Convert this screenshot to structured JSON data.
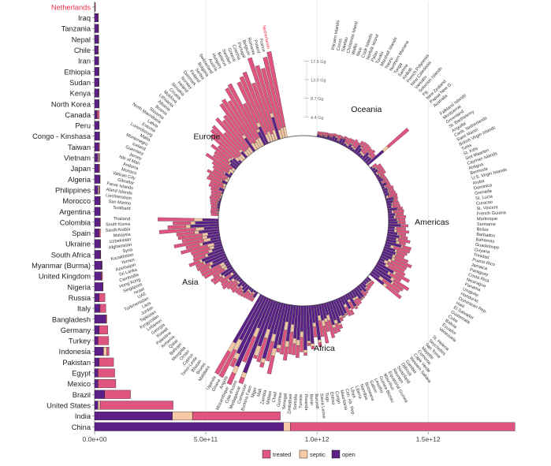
{
  "colors": {
    "treated": "#e0557f",
    "septic": "#f6c9a6",
    "open": "#5b1f87",
    "highlight": "#e8304a",
    "axis": "#666666",
    "grid": "#d9d9d9"
  },
  "legend": {
    "items": [
      {
        "key": "treated",
        "label": "treated"
      },
      {
        "key": "septic",
        "label": "septic"
      },
      {
        "key": "open",
        "label": "open"
      }
    ]
  },
  "chart_data": [
    {
      "type": "bar",
      "orientation": "horizontal",
      "stacked": true,
      "highlighted_category": "Netherlands",
      "series_order": [
        "open",
        "septic",
        "treated"
      ],
      "xlim": [
        0,
        1900000000000.0
      ],
      "x_ticks": [
        0,
        500000000000.0,
        1000000000000.0,
        1500000000000.0
      ],
      "x_tick_labels": [
        "0.0e+00",
        "5.0e+11",
        "1.0e+12",
        "1.5e+12"
      ],
      "grid": true,
      "rows": [
        {
          "label": "Netherlands",
          "open": 1000000000.0,
          "septic": 200000000.0,
          "treated": 2500000000.0
        },
        {
          "label": "Iraq",
          "open": 15000000000.0,
          "septic": 500000000.0,
          "treated": 1000000000.0
        },
        {
          "label": "Tanzania",
          "open": 16000000000.0,
          "septic": 500000000.0,
          "treated": 300000000.0
        },
        {
          "label": "Nepal",
          "open": 17000000000.0,
          "septic": 300000000.0,
          "treated": 200000000.0
        },
        {
          "label": "Chile",
          "open": 15000000000.0,
          "septic": 500000000.0,
          "treated": 2000000000.0
        },
        {
          "label": "Iran",
          "open": 17000000000.0,
          "septic": 500000000.0,
          "treated": 500000000.0
        },
        {
          "label": "Ethiopia",
          "open": 18000000000.0,
          "septic": 500000000.0,
          "treated": 300000000.0
        },
        {
          "label": "Sudan",
          "open": 18000000000.0,
          "septic": 500000000.0,
          "treated": 300000000.0
        },
        {
          "label": "Kenya",
          "open": 18000000000.0,
          "septic": 500000000.0,
          "treated": 500000000.0
        },
        {
          "label": "North Korea",
          "open": 19000000000.0,
          "septic": 500000000.0,
          "treated": 300000000.0
        },
        {
          "label": "Canada",
          "open": 10000000000.0,
          "septic": 1000000000.0,
          "treated": 10000000000.0
        },
        {
          "label": "Peru",
          "open": 19000000000.0,
          "septic": 500000000.0,
          "treated": 1500000000.0
        },
        {
          "label": "Congo - Kinshasa",
          "open": 21000000000.0,
          "septic": 500000000.0,
          "treated": 500000000.0
        },
        {
          "label": "Taiwan",
          "open": 18000000000.0,
          "septic": 500000000.0,
          "treated": 4000000000.0
        },
        {
          "label": "Vietnam",
          "open": 15000000000.0,
          "septic": 5000000000.0,
          "treated": 3000000000.0
        },
        {
          "label": "Japan",
          "open": 18000000000.0,
          "septic": 1000000000.0,
          "treated": 4000000000.0
        },
        {
          "label": "Algeria",
          "open": 23000000000.0,
          "septic": 500000000.0,
          "treated": 1000000000.0
        },
        {
          "label": "Philippines",
          "open": 15000000000.0,
          "septic": 6000000000.0,
          "treated": 3000000000.0
        },
        {
          "label": "Morocco",
          "open": 23000000000.0,
          "septic": 500000000.0,
          "treated": 2000000000.0
        },
        {
          "label": "Argentina",
          "open": 24000000000.0,
          "septic": 500000000.0,
          "treated": 1000000000.0
        },
        {
          "label": "Colombia",
          "open": 24000000000.0,
          "septic": 500000000.0,
          "treated": 2000000000.0
        },
        {
          "label": "Spain",
          "open": 20000000000.0,
          "septic": 500000000.0,
          "treated": 6000000000.0
        },
        {
          "label": "Ukraine",
          "open": 25000000000.0,
          "septic": 500000000.0,
          "treated": 1500000000.0
        },
        {
          "label": "South Africa",
          "open": 26000000000.0,
          "septic": 500000000.0,
          "treated": 1500000000.0
        },
        {
          "label": "Myanmar (Burma)",
          "open": 32000000000.0,
          "septic": 500000000.0,
          "treated": 500000000.0
        },
        {
          "label": "United Kingdom",
          "open": 30000000000.0,
          "septic": 500000000.0,
          "treated": 5000000000.0
        },
        {
          "label": "Nigeria",
          "open": 36000000000.0,
          "septic": 500000000.0,
          "treated": 2000000000.0
        },
        {
          "label": "Russia",
          "open": 20000000000.0,
          "septic": 500000000.0,
          "treated": 26000000000.0
        },
        {
          "label": "Italy",
          "open": 24000000000.0,
          "septic": 500000000.0,
          "treated": 26000000000.0
        },
        {
          "label": "Bangladesh",
          "open": 50000000000.0,
          "septic": 1000000000.0,
          "treated": 4000000000.0
        },
        {
          "label": "Germany",
          "open": 20000000000.0,
          "septic": 500000000.0,
          "treated": 39000000000.0
        },
        {
          "label": "Turkey",
          "open": 15000000000.0,
          "septic": 500000000.0,
          "treated": 48000000000.0
        },
        {
          "label": "Indonesia",
          "open": 40000000000.0,
          "septic": 15000000000.0,
          "treated": 10000000000.0
        },
        {
          "label": "Pakistan",
          "open": 20000000000.0,
          "septic": 500000000.0,
          "treated": 65000000000.0
        },
        {
          "label": "Egypt",
          "open": 15000000000.0,
          "septic": 500000000.0,
          "treated": 75000000000.0
        },
        {
          "label": "Mexico",
          "open": 15000000000.0,
          "septic": 500000000.0,
          "treated": 80000000000.0
        },
        {
          "label": "Brazil",
          "open": 45000000000.0,
          "septic": 500000000.0,
          "treated": 116000000000.0
        },
        {
          "label": "United States",
          "open": 15000000000.0,
          "septic": 10000000000.0,
          "treated": 328000000000.0
        },
        {
          "label": "India",
          "open": 350000000000.0,
          "septic": 90000000000.0,
          "treated": 395000000000.0
        },
        {
          "label": "China",
          "open": 850000000000.0,
          "septic": 30000000000.0,
          "treated": 1010000000000.0
        }
      ]
    },
    {
      "type": "bar",
      "coordinate_system": "polar",
      "stacked": true,
      "series_order": [
        "open",
        "septic",
        "treated"
      ],
      "radial_ticks": [
        4.4,
        8.7,
        13.0,
        17.5
      ],
      "radial_tick_labels": [
        "4.4 Gg",
        "8.7 Gg",
        "13.0 Gg",
        "17.5 Gg"
      ],
      "highlighted_category": "Netherlands",
      "regions": [
        {
          "name": "Oceania",
          "countries": [
            "Pitcairn Islands",
            "Cocos",
            "Tokelau",
            "Christmas Island",
            "Wallis",
            "Niue",
            "Cook Islands",
            "Norfolk Island",
            "Palau",
            "Tuvalu",
            "Marshall Islands",
            "Nauru",
            "Northern Mariana",
            "Tonga",
            "Samoa",
            "Kiribati",
            "French Polynesia",
            "New Caledonia",
            "Vanuatu",
            "Solomon Islands",
            "Fiji",
            "New Zealand",
            "Papua New G.",
            "Australia"
          ]
        },
        {
          "name": "Americas",
          "countries": [
            "Falkland Islands",
            "Montserrat",
            "Greenland",
            "St. Barthelemy",
            "Anguilla",
            "Carib. Netherlands",
            "Saint Martin",
            "British Virgin Islands",
            "Turks",
            "St. Kitts",
            "Sint Maarten",
            "Cayman Islands",
            "Antigua",
            "Bermuda",
            "U.S. Virgin Islands",
            "Aruba",
            "Dominica",
            "Grenada",
            "St. Lucia",
            "Curacao",
            "St. Vincent",
            "French Guiana",
            "Martinique",
            "Suriname",
            "Belize",
            "Barbados",
            "Bahamas",
            "Guadeloupe",
            "Guyana",
            "Trinidad",
            "Puerto Rico",
            "Jamaica",
            "Paraguay",
            "Costa Rica",
            "Nicaragua",
            "Panama",
            "Uruguay",
            "Honduras",
            "Dominican Rep.",
            "Haiti",
            "El Salvador",
            "Guatemala",
            "Cuba",
            "Bolivia",
            "Ecuador",
            "Venezuela"
          ]
        },
        {
          "name": "Africa",
          "countries": [
            "St. Helena",
            "Seychelles",
            "Sao Tome",
            "Mayotte",
            "Comoros",
            "Cape Verde",
            "Western Sahara",
            "Gambia",
            "Djibouti",
            "Swaziland",
            "Reunion",
            "Equatorial Guinea",
            "Mauritius",
            "Guinea-Bissau",
            "Lesotho",
            "Gabon",
            "Botswana",
            "Namibia",
            "Liberia",
            "Libya",
            "Cen. Afr. Rep.",
            "Mauritania",
            "Congo",
            "Eritrea",
            "Togo",
            "Sierra Leone",
            "Burundi",
            "Benin",
            "Rwanda",
            "Tunisia",
            "Somalia",
            "Zimbabwe",
            "Senegal",
            "Guinea",
            "Chad",
            "Malawi",
            "Zambia",
            "Mali",
            "Niger",
            "Burkina Faso",
            "Cameroon",
            "Madagascar",
            "Cote d'Ivoire",
            "Mozambique",
            "Angola",
            "Ghana",
            "Uganda"
          ]
        },
        {
          "name": "Asia",
          "countries": [
            "Maldives",
            "Brunei",
            "Bhutan",
            "Timor-Leste",
            "Cyprus",
            "Oman",
            "Mongolia",
            "Bahrain",
            "Qatar",
            "Armenia",
            "Palestine",
            "Kuwait",
            "Georgia",
            "Lebanon",
            "Kyrgyzstan",
            "Tajikistan",
            "Jordan",
            "Laos",
            "Turkmenistan",
            "UAE",
            "Israel",
            "Singapore",
            "Hong Kong",
            "Cambodia",
            "Sri Lanka",
            "Azerbaijan",
            "Yemen",
            "Kazakhstan",
            "Syria",
            "Afghanistan",
            "Uzbekistan",
            "Malaysia",
            "Saudi Arabia",
            "South Korea",
            "Thailand"
          ]
        },
        {
          "name": "Europe",
          "countries": [
            "Svalbard",
            "San Marino",
            "Liechtenstein",
            "Aland Islands",
            "Faroe Islands",
            "Gibraltar",
            "Vatican City",
            "Monaco",
            "Andorra",
            "Isle of Man",
            "Jersey",
            "Guernsey",
            "Iceland",
            "Montenegro",
            "Malta",
            "Luxembourg",
            "Estonia",
            "Latvia",
            "North Macedonia",
            "Slovenia",
            "Bosnia",
            "Albania",
            "Lithuania",
            "Moldova",
            "Croatia",
            "Slovakia",
            "Ireland",
            "Norway",
            "Denmark",
            "Finland",
            "Serbia",
            "Bulgaria",
            "Switzerland",
            "Austria",
            "Hungary",
            "Belarus",
            "Sweden",
            "Greece",
            "Czechia",
            "Portugal",
            "Belgium",
            "Romania",
            "Poland",
            "France",
            "Netherlands"
          ]
        }
      ]
    }
  ]
}
